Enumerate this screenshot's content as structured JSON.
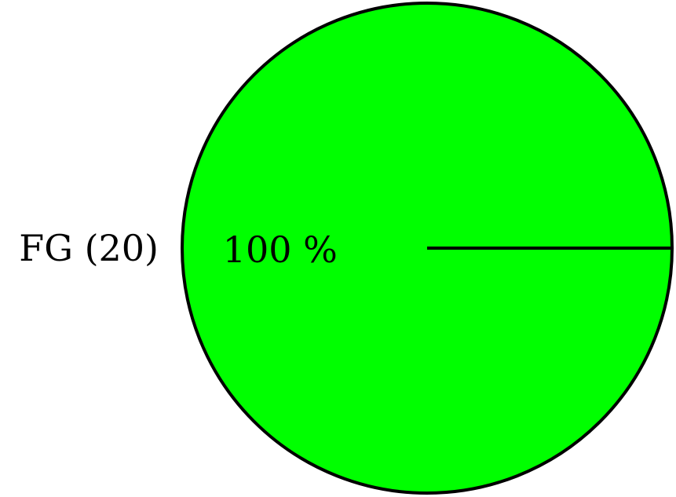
{
  "chart_data": {
    "type": "pie",
    "slices": [
      {
        "label": "FG (20)",
        "value": 20,
        "percent_label": "100 %",
        "color": "#00ff00"
      }
    ],
    "title": "",
    "legend": "none",
    "edge_color": "#000000"
  }
}
